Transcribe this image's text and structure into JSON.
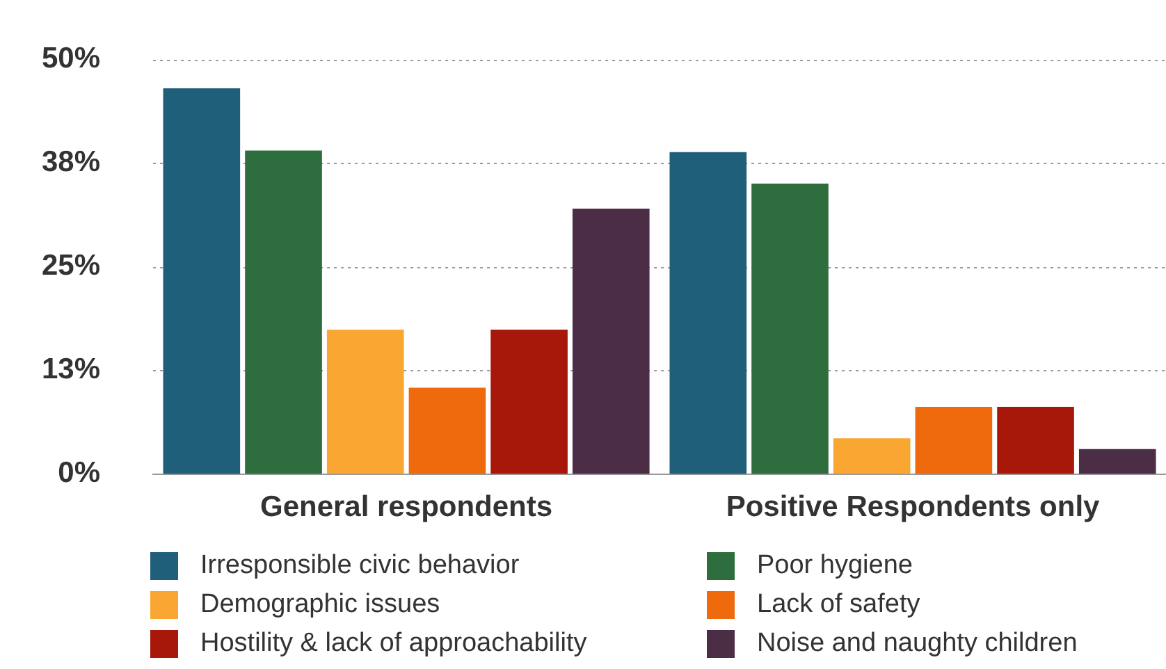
{
  "chart_data": {
    "type": "bar",
    "categories": [
      "General respondents",
      "Positive Respondents only"
    ],
    "series": [
      {
        "name": "Irresponsible civic behavior",
        "color": "#1f5f7a",
        "values": [
          46.5,
          38.8
        ]
      },
      {
        "name": "Poor hygiene",
        "color": "#2e6e3e",
        "values": [
          39,
          35
        ]
      },
      {
        "name": "Demographic issues",
        "color": "#f9a732",
        "values": [
          17.4,
          4.3
        ]
      },
      {
        "name": "Lack of safety",
        "color": "#ef6a0c",
        "values": [
          10.4,
          8.1
        ]
      },
      {
        "name": "Hostility & lack of approachability",
        "color": "#a8180a",
        "values": [
          17.4,
          8.1
        ]
      },
      {
        "name": "Noise and naughty children",
        "color": "#4b2d45",
        "values": [
          32,
          3
        ]
      }
    ],
    "ylim": [
      0,
      50
    ],
    "yticks": [
      {
        "value": 0,
        "label": "0%"
      },
      {
        "value": 12.5,
        "label": "13%"
      },
      {
        "value": 25,
        "label": "25%"
      },
      {
        "value": 37.5,
        "label": "38%"
      },
      {
        "value": 50,
        "label": "50%"
      }
    ],
    "grid": "y",
    "legend": "bottom"
  }
}
